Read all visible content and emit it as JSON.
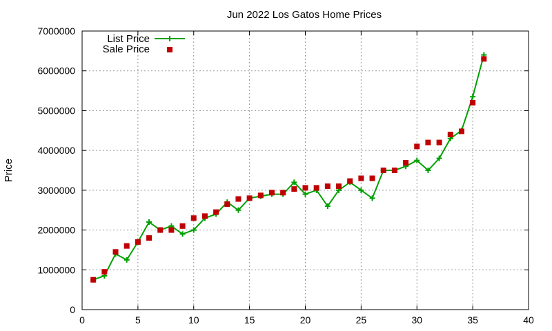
{
  "chart_data": {
    "type": "line",
    "title": "Jun 2022 Los Gatos Home Prices",
    "xlabel": "",
    "ylabel": "Price",
    "xlim": [
      0,
      40
    ],
    "ylim": [
      0,
      7000000
    ],
    "xticks": [
      0,
      5,
      10,
      15,
      20,
      25,
      30,
      35,
      40
    ],
    "yticks": [
      0,
      1000000,
      2000000,
      3000000,
      4000000,
      5000000,
      6000000,
      7000000
    ],
    "xtick_labels": [
      "0",
      "5",
      "10",
      "15",
      "20",
      "25",
      "30",
      "35",
      "40"
    ],
    "ytick_labels": [
      "0",
      "1000000",
      "2000000",
      "3000000",
      "4000000",
      "5000000",
      "6000000",
      "7000000"
    ],
    "grid": true,
    "legend_position": "top-left",
    "x": [
      1,
      2,
      3,
      4,
      5,
      6,
      7,
      8,
      9,
      10,
      11,
      12,
      13,
      14,
      15,
      16,
      17,
      18,
      19,
      20,
      21,
      22,
      23,
      24,
      25,
      26,
      27,
      28,
      29,
      30,
      31,
      32,
      33,
      34,
      35,
      36
    ],
    "series": [
      {
        "name": "List Price",
        "style": "line+cross",
        "color": "#00a000",
        "values": [
          750000,
          850000,
          1400000,
          1250000,
          1700000,
          2200000,
          2000000,
          2100000,
          1900000,
          2000000,
          2300000,
          2400000,
          2700000,
          2500000,
          2800000,
          2850000,
          2900000,
          2900000,
          3200000,
          2900000,
          3000000,
          2600000,
          3000000,
          3200000,
          3000000,
          2800000,
          3500000,
          3500000,
          3600000,
          3750000,
          3500000,
          3800000,
          4300000,
          4500000,
          5350000,
          6400000
        ]
      },
      {
        "name": "Sale Price",
        "style": "square",
        "color": "#c00000",
        "values": [
          750000,
          950000,
          1450000,
          1600000,
          1700000,
          1800000,
          2000000,
          2000000,
          2100000,
          2300000,
          2350000,
          2450000,
          2650000,
          2780000,
          2800000,
          2870000,
          2940000,
          2940000,
          3030000,
          3060000,
          3060000,
          3100000,
          3100000,
          3230000,
          3300000,
          3300000,
          3500000,
          3500000,
          3690000,
          4100000,
          4200000,
          4200000,
          4400000,
          4480000,
          5200000,
          6300000
        ]
      }
    ]
  }
}
